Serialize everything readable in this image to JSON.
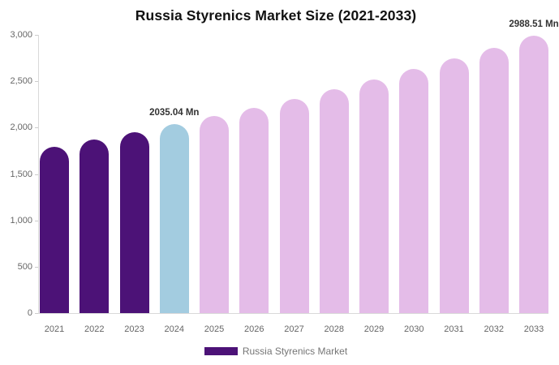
{
  "title": "Russia Styrenics Market Size (2021-2033)",
  "legend": {
    "label": "Russia Styrenics Market",
    "swatch_color": "#4C1277"
  },
  "colors": {
    "historical_bar": "#4C1277",
    "highlight_year_bar": "#A3CCE0",
    "forecast_bar": "#E4BCE8",
    "axis_line": "#D9D9D9",
    "tick_mark": "#CCCCCC",
    "axis_text": "#666666",
    "data_label_text": "#333333",
    "legend_text": "#757575",
    "title_text": "#111111",
    "background": "#FFFFFF"
  },
  "chart_data": {
    "type": "bar",
    "title": "Russia Styrenics Market Size (2021-2033)",
    "unit": "Mn",
    "categories": [
      "2021",
      "2022",
      "2023",
      "2024",
      "2025",
      "2026",
      "2027",
      "2028",
      "2029",
      "2030",
      "2031",
      "2032",
      "2033"
    ],
    "values": [
      1790,
      1868,
      1950,
      2035.04,
      2124,
      2216,
      2313,
      2414,
      2519,
      2629,
      2744,
      2863,
      2988.51
    ],
    "bar_colors": [
      "#4C1277",
      "#4C1277",
      "#4C1277",
      "#A3CCE0",
      "#E4BCE8",
      "#E4BCE8",
      "#E4BCE8",
      "#E4BCE8",
      "#E4BCE8",
      "#E4BCE8",
      "#E4BCE8",
      "#E4BCE8",
      "#E4BCE8"
    ],
    "point_labels": {
      "2024": "2035.04 Mn",
      "2033": "2988.51 Mn"
    },
    "xlabel": "",
    "ylabel": "",
    "ylim": [
      0,
      3000
    ],
    "yticks": [
      0,
      500,
      1000,
      1500,
      2000,
      2500,
      3000
    ],
    "ytick_labels": [
      "0",
      "500",
      "1,000",
      "1,500",
      "2,000",
      "2,500",
      "3,000"
    ],
    "grid": false,
    "legend_position": "bottom-center",
    "legend_entries": [
      "Russia Styrenics Market"
    ]
  }
}
